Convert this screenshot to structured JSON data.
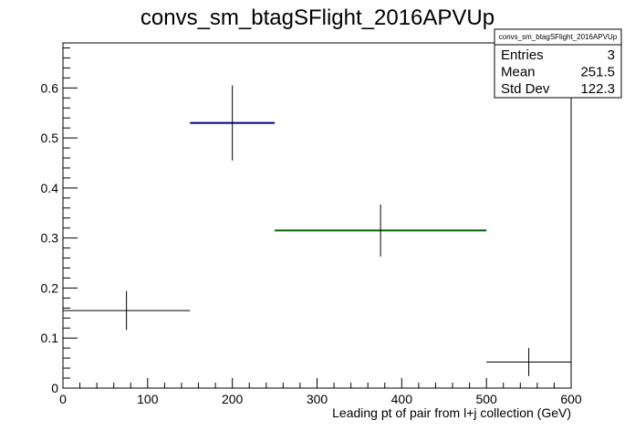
{
  "chart_data": {
    "type": "histogram",
    "title": "convs_sm_btagSFlight_2016APVUp",
    "xlabel": "Leading pt of pair from l+j collection (GeV)",
    "ylabel": "",
    "xlim": [
      0,
      600
    ],
    "ylim": [
      0,
      0.69
    ],
    "x_ticks": [
      "0",
      "100",
      "200",
      "300",
      "400",
      "500",
      "600"
    ],
    "y_ticks": [
      "0",
      "0.1",
      "0.2",
      "0.3",
      "0.4",
      "0.5",
      "0.6"
    ],
    "grid": false,
    "bins": [
      {
        "x_low": 0,
        "x_high": 150,
        "x_center": 75,
        "y": 0.155,
        "y_err": 0.039,
        "color": "#000000"
      },
      {
        "x_low": 150,
        "x_high": 250,
        "x_center": 200,
        "y": 0.53,
        "y_err": 0.075,
        "color": "#000080"
      },
      {
        "x_low": 250,
        "x_high": 500,
        "x_center": 375,
        "y": 0.315,
        "y_err": 0.052,
        "color": "#006400"
      },
      {
        "x_low": 500,
        "x_high": 600,
        "x_center": 550,
        "y": 0.052,
        "y_err": 0.028,
        "color": "#000000"
      }
    ],
    "stats_box": {
      "placement": "top-right",
      "name": "convs_sm_btagSFlight_2016APVUp",
      "rows": [
        {
          "label": "Entries",
          "value": "3"
        },
        {
          "label": "Mean",
          "value": "251.5"
        },
        {
          "label": "Std Dev",
          "value": "122.3"
        }
      ]
    }
  }
}
